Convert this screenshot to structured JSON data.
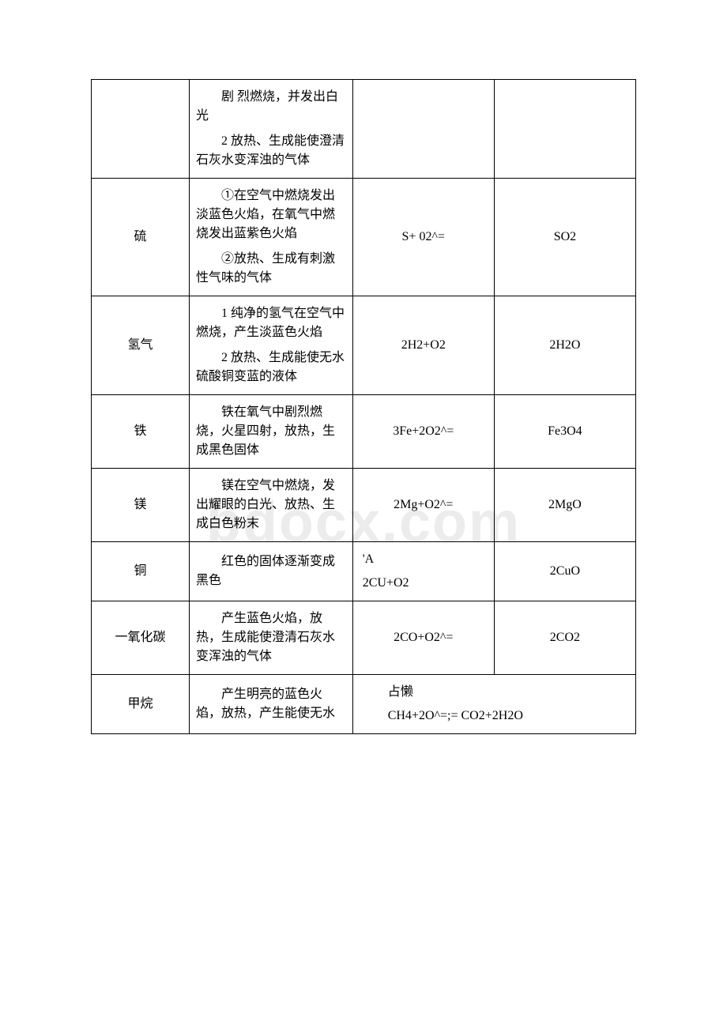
{
  "watermark": "bdocx.com",
  "table": {
    "border_color": "#000000",
    "background_color": "#ffffff",
    "text_color": "#000000",
    "font_size": 16,
    "column_widths": [
      "18%",
      "30%",
      "26%",
      "26%"
    ],
    "rows": [
      {
        "substance": "",
        "phenomena": [
          "剧 烈燃烧，并发出白光",
          "2 放热、生成能使澄清石灰水变浑浊的气体"
        ],
        "reaction": "",
        "product": ""
      },
      {
        "substance": "硫",
        "phenomena": [
          "①在空气中燃烧发出淡蓝色火焰，在氧气中燃烧发出蓝紫色火焰",
          "②放热、生成有刺激性气味的气体"
        ],
        "reaction": "S+ 02^=",
        "product": "SO2"
      },
      {
        "substance": "氢气",
        "phenomena": [
          "1 纯净的氢气在空气中燃烧，产生淡蓝色火焰",
          "2 放热、生成能使无水硫酸铜变蓝的液体"
        ],
        "reaction": "2H2+O2",
        "product": "2H2O"
      },
      {
        "substance": "铁",
        "phenomena": [
          "铁在氧气中剧烈燃烧，火星四射，放热，生成黑色固体"
        ],
        "reaction": "3Fe+2O2^=",
        "product": "Fe3O4"
      },
      {
        "substance": "镁",
        "phenomena": [
          "镁在空气中燃烧，发出耀眼的白光、放热、生成白色粉末"
        ],
        "reaction": "2Mg+O2^=",
        "product": "2MgO"
      },
      {
        "substance": "铜",
        "phenomena": [
          "红色的固体逐渐变成黑色"
        ],
        "reaction_lines": [
          "'A",
          "2CU+O2"
        ],
        "product": "2CuO"
      },
      {
        "substance": "一氧化碳",
        "phenomena": [
          "产生蓝色火焰，放热，生成能使澄清石灰水变浑浊的气体"
        ],
        "reaction": "2CO+O2^=",
        "product": "2CO2"
      },
      {
        "substance": "甲烷",
        "phenomena": [
          "产生明亮的蓝色火焰，放热，产生能使无水"
        ],
        "merged_lines": [
          "占懒",
          "CH4+2O^=;= CO2+2H2O"
        ]
      }
    ]
  }
}
